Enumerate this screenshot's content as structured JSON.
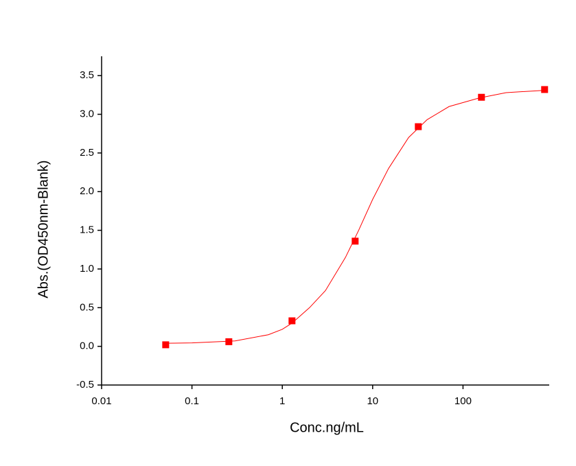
{
  "chart_data": {
    "type": "scatter",
    "x_label": "Conc.ng/mL",
    "y_label": "Abs.(OD450nm-Blank)",
    "x_scale": "log",
    "xlim": [
      0.01,
      900
    ],
    "ylim": [
      -0.5,
      3.75
    ],
    "xticks": [
      0.01,
      0.1,
      1,
      10,
      100
    ],
    "yticks": [
      -0.5,
      {
        "value": 0,
        "label": "0.0"
      },
      0.5,
      {
        "value": 1,
        "label": "1.0"
      },
      1.5,
      {
        "value": 2,
        "label": "2.0"
      },
      2.5,
      {
        "value": 3,
        "label": "3.0"
      },
      3.5
    ],
    "grid": false,
    "series": [
      {
        "color": "#ff0000",
        "marker": "square",
        "x": [
          0.0512,
          0.256,
          1.28,
          6.4,
          32,
          160,
          800
        ],
        "values": [
          0.02,
          0.06,
          0.33,
          1.36,
          2.84,
          3.22,
          3.32
        ]
      },
      {
        "color": "#ff0000",
        "marker": "line",
        "x": [
          0.0512,
          0.1,
          0.3,
          0.7,
          1,
          1.28,
          2,
          3,
          5,
          7,
          10,
          15,
          25,
          40,
          70,
          150,
          300,
          800
        ],
        "values": [
          0.04,
          0.045,
          0.07,
          0.15,
          0.22,
          0.3,
          0.5,
          0.72,
          1.15,
          1.5,
          1.9,
          2.3,
          2.7,
          2.93,
          3.1,
          3.21,
          3.28,
          3.31
        ]
      }
    ]
  }
}
